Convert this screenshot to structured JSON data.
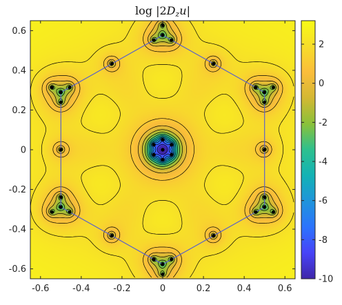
{
  "chart_data": {
    "type": "heatmap",
    "title": "log |2D_z u|",
    "title_parts": {
      "prefix": "log |2",
      "D": "D",
      "sub": "z",
      "u": "u",
      "suffix": "|"
    },
    "xlabel": "",
    "ylabel": "",
    "xlim": [
      -0.65,
      0.65
    ],
    "ylim": [
      -0.65,
      0.65
    ],
    "x_ticks": [
      -0.6,
      -0.4,
      -0.2,
      0,
      0.2,
      0.4,
      0.6
    ],
    "y_ticks": [
      -0.6,
      -0.4,
      -0.2,
      0,
      0.2,
      0.4,
      0.6
    ],
    "x_tick_labels": [
      "-0.6",
      "-0.4",
      "-0.2",
      "0",
      "0.2",
      "0.4",
      "0.6"
    ],
    "y_tick_labels": [
      "-0.6",
      "-0.4",
      "-0.2",
      "0",
      "0.2",
      "0.4",
      "0.6"
    ],
    "colorbar": {
      "range": [
        -10,
        3.2
      ],
      "ticks": [
        2,
        0,
        -2,
        -4,
        -6,
        -8,
        -10
      ],
      "tick_labels": [
        "2",
        "0",
        "-2",
        "-4",
        "-6",
        "-8",
        "-10"
      ],
      "colormap": [
        "#3e26a8",
        "#4743f8",
        "#2c73fe",
        "#1f94db",
        "#13b2b5",
        "#2dc08e",
        "#8ac13a",
        "#d3b833",
        "#fbbd3b",
        "#f7dd2a",
        "#f9fb15"
      ]
    },
    "hexagon_vertices": [
      [
        0.5,
        0.289
      ],
      [
        0,
        0.577
      ],
      [
        -0.5,
        0.289
      ],
      [
        -0.5,
        -0.289
      ],
      [
        0,
        -0.577
      ],
      [
        0.5,
        -0.289
      ]
    ],
    "zeros": {
      "center": [
        0,
        0
      ],
      "center_ring_radius": 0.05,
      "center_ring_count": 6,
      "vertex_arm_length": 0.05,
      "edge_midpoints": [
        [
          0.25,
          0.433
        ],
        [
          -0.25,
          0.433
        ],
        [
          -0.5,
          0
        ],
        [
          -0.25,
          -0.433
        ],
        [
          0.25,
          -0.433
        ],
        [
          0.5,
          0
        ]
      ]
    },
    "contour_levels": [
      -9,
      -8,
      -7,
      -6,
      -5,
      -4,
      -3,
      -2,
      -1,
      0,
      1,
      2
    ],
    "grid": false,
    "legend": "none"
  }
}
